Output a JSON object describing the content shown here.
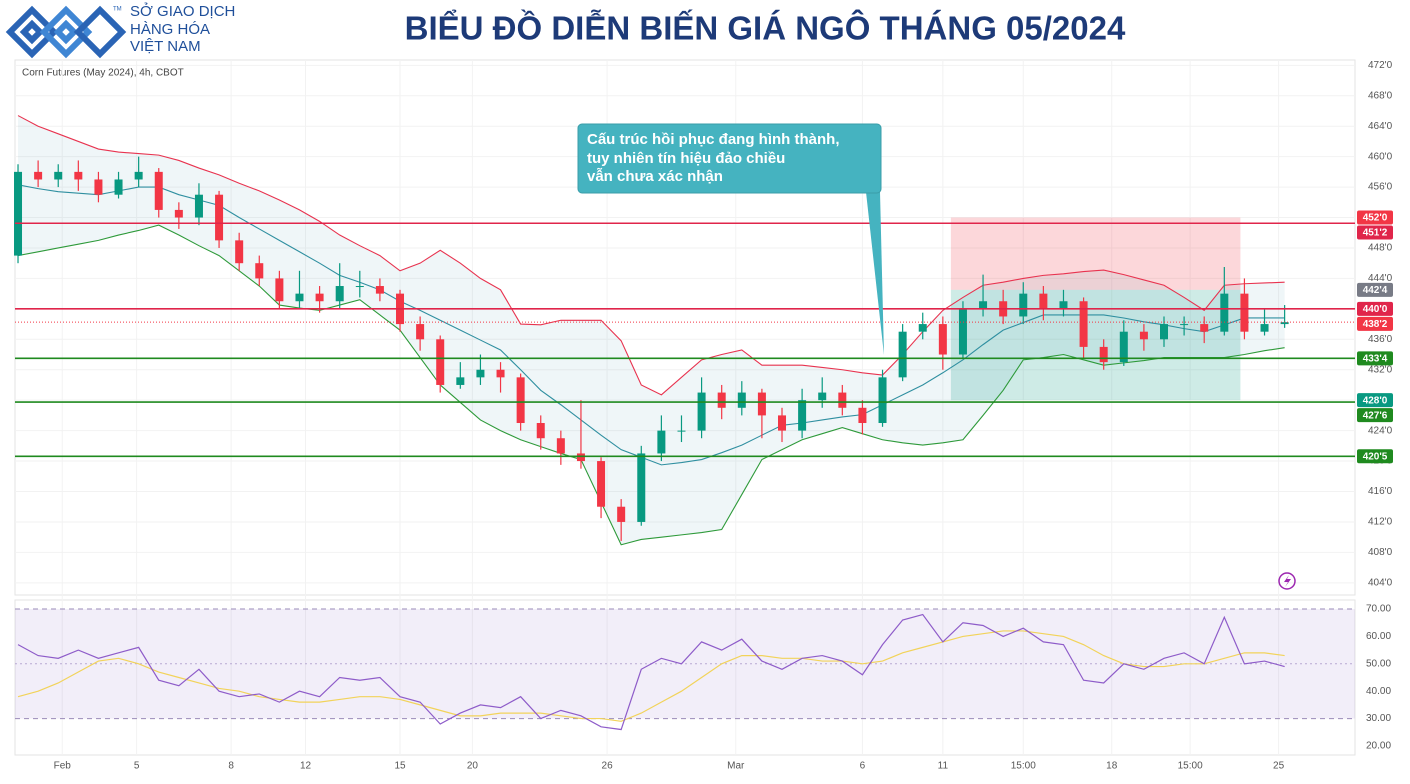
{
  "header": {
    "logo_mark": "TM",
    "logo_lines": [
      "SỞ GIAO DỊCH",
      "HÀNG HÓA",
      "VIỆT NAM"
    ],
    "title": "BIỂU ĐỒ DIỄN BIẾN GIÁ NGÔ THÁNG 05/2024"
  },
  "chart_data": [
    {
      "type": "candlestick",
      "subtitle": "Corn Futures (May 2024), 4h, CBOT",
      "up_color": "#089981",
      "down_color": "#f23645",
      "open": [
        447,
        458,
        457,
        458,
        457,
        455,
        457,
        458,
        453,
        452,
        455,
        449,
        446,
        444,
        441,
        442,
        441,
        443,
        443,
        442,
        438,
        436,
        430,
        431,
        432,
        431,
        425,
        423,
        421,
        420,
        414,
        412,
        421,
        424,
        424,
        429,
        427,
        429,
        426,
        424,
        428,
        429,
        427,
        425,
        431,
        437,
        438,
        434,
        440,
        441,
        439,
        442,
        440,
        441,
        435,
        433,
        437,
        436,
        438,
        438,
        437,
        442,
        437,
        438
      ],
      "high": [
        459,
        459.5,
        459,
        459.5,
        458,
        458,
        460,
        458.5,
        454,
        456.5,
        455.5,
        450,
        447,
        445,
        445,
        443,
        446,
        445,
        444,
        442.5,
        439,
        436.5,
        433,
        434,
        433,
        431.5,
        426,
        424,
        428,
        420.5,
        415,
        422,
        426,
        426,
        431,
        430,
        430.5,
        429.5,
        427,
        429.5,
        431,
        430,
        428,
        432,
        438,
        439.5,
        439,
        441,
        444.5,
        442.5,
        443.5,
        443,
        442.5,
        441.5,
        436,
        438.5,
        438,
        439,
        439,
        439,
        445.5,
        444,
        440,
        440.5
      ],
      "low": [
        446,
        456,
        456,
        455.5,
        454,
        454.5,
        456,
        452,
        450.5,
        451,
        448,
        445,
        443,
        440,
        440,
        439.5,
        440,
        441.5,
        441,
        437,
        434.5,
        429,
        429.5,
        430,
        429,
        424,
        421.5,
        419.5,
        419,
        412.5,
        409.5,
        411.5,
        420,
        422.5,
        423,
        425.5,
        426,
        423,
        422.5,
        423,
        427,
        426,
        423.5,
        424.5,
        430.5,
        436,
        432,
        433.5,
        439,
        438,
        438,
        438.5,
        439,
        433.5,
        432,
        432.5,
        434.5,
        435,
        436.5,
        435.5,
        436.5,
        436,
        436.5,
        437.5
      ],
      "close": [
        458,
        457,
        458,
        457,
        455,
        457,
        458,
        453,
        452,
        455,
        449,
        446,
        444,
        441,
        442,
        441,
        443,
        443,
        442,
        438,
        436,
        430,
        431,
        432,
        431,
        425,
        423,
        421,
        420,
        414,
        412,
        421,
        424,
        424,
        429,
        427,
        429,
        426,
        424,
        428,
        429,
        427,
        425,
        431,
        437,
        438,
        434,
        440,
        441,
        439,
        442,
        440,
        441,
        435,
        433,
        437,
        436,
        438,
        438,
        437,
        442,
        437,
        438,
        438.25
      ],
      "bollinger": {
        "upper_color": "#e8334f",
        "middle_color": "#2f8fa0",
        "lower_color": "#2e9a3a",
        "upper": [
          465.4,
          464,
          463,
          462,
          461,
          460.6,
          460.4,
          460.2,
          459.5,
          458.5,
          457.6,
          456.5,
          455.5,
          454.3,
          453,
          451.5,
          449.7,
          448.3,
          447,
          445,
          446,
          447.7,
          446,
          444,
          442.5,
          438,
          437.9,
          438.5,
          438.5,
          438.5,
          435.8,
          430,
          428.7,
          431,
          433.3,
          434,
          434.6,
          432.6,
          432.6,
          432.6,
          432.3,
          432,
          431.6,
          431.3,
          434,
          437,
          439.8,
          441.5,
          443.1,
          443.5,
          444,
          444.4,
          444.6,
          444.9,
          445.1,
          444.5,
          443.8,
          443.1,
          441.5,
          439.8,
          443.1,
          443.3,
          443.4,
          443.5
        ],
        "middle": [
          456.3,
          455.8,
          455.4,
          455.2,
          455,
          455.5,
          456,
          456,
          455,
          454.3,
          453.6,
          452,
          450.5,
          449,
          447.5,
          446,
          444.4,
          443.5,
          442.5,
          441,
          439.8,
          438.5,
          437.2,
          435.9,
          434.6,
          432,
          429.3,
          427.4,
          425.4,
          423.4,
          421.5,
          420.5,
          419.5,
          419.8,
          420.2,
          421.1,
          422.1,
          423.4,
          424.7,
          425,
          425.4,
          425.8,
          426.1,
          427.4,
          428.7,
          430,
          431.6,
          433.3,
          435.3,
          437.2,
          438.2,
          439.2,
          439.2,
          439.2,
          439.2,
          438.8,
          438.3,
          437.9,
          437.4,
          437,
          437.9,
          438.8,
          438.8,
          438.8
        ],
        "lower": [
          447,
          447.5,
          448,
          448.5,
          449,
          449.7,
          450.3,
          451,
          449.7,
          448.3,
          447,
          445,
          443,
          440.5,
          440.1,
          439.8,
          440.5,
          441.2,
          439.2,
          437.2,
          433.6,
          430,
          427.7,
          425.4,
          424,
          422.8,
          421.9,
          421,
          420.2,
          414.6,
          409,
          409.7,
          410,
          410.3,
          410.6,
          411,
          415.6,
          420.2,
          421.5,
          422.8,
          423.6,
          424.4,
          423.6,
          422.8,
          422.4,
          422.1,
          422.4,
          422.8,
          426,
          429.3,
          433.3,
          433.6,
          434,
          433.3,
          432.6,
          432.9,
          433.2,
          433.6,
          433.6,
          433.6,
          433.6,
          434,
          434.5,
          434.9
        ]
      },
      "xlim": [
        -0.15,
        66.5
      ],
      "ylim": [
        402.4,
        472.7
      ],
      "xticks": [
        {
          "value": 2.2,
          "label": "Feb"
        },
        {
          "value": 5.9,
          "label": "5"
        },
        {
          "value": 10.6,
          "label": "8"
        },
        {
          "value": 14.3,
          "label": "12"
        },
        {
          "value": 19,
          "label": "15"
        },
        {
          "value": 22.6,
          "label": "20"
        },
        {
          "value": 29.3,
          "label": "26"
        },
        {
          "value": 35.7,
          "label": "Mar"
        },
        {
          "value": 42,
          "label": "6"
        },
        {
          "value": 46,
          "label": "11"
        },
        {
          "value": 50,
          "label": "15:00"
        },
        {
          "value": 54.4,
          "label": "18"
        },
        {
          "value": 58.3,
          "label": "15:00"
        },
        {
          "value": 62.7,
          "label": "25"
        }
      ],
      "yticks": [
        {
          "value": 404,
          "label": "404'0"
        },
        {
          "value": 408,
          "label": "408'0"
        },
        {
          "value": 412,
          "label": "412'0"
        },
        {
          "value": 416,
          "label": "416'0"
        },
        {
          "value": 420,
          "label": "420'0"
        },
        {
          "value": 424,
          "label": "424'0"
        },
        {
          "value": 428,
          "label": "428'0"
        },
        {
          "value": 432,
          "label": "432'0"
        },
        {
          "value": 436,
          "label": "436'0"
        },
        {
          "value": 440,
          "label": "440'0"
        },
        {
          "value": 444,
          "label": "444'0"
        },
        {
          "value": 448,
          "label": "448'0"
        },
        {
          "value": 452,
          "label": "452'0"
        },
        {
          "value": 456,
          "label": "456'0"
        },
        {
          "value": 460,
          "label": "460'0"
        },
        {
          "value": 464,
          "label": "464'0"
        },
        {
          "value": 468,
          "label": "468'0"
        },
        {
          "value": 472,
          "label": "472'0"
        }
      ],
      "levels": [
        {
          "value": 451.25,
          "label": "451'2",
          "color": "#e0254a"
        },
        {
          "value": 440,
          "label": "440'0",
          "color": "#e0254a"
        },
        {
          "value": 433.5,
          "label": "433'4",
          "color": "#1f8a1f"
        },
        {
          "value": 427.75,
          "label": "427'6",
          "color": "#1f8a1f"
        },
        {
          "value": 420.625,
          "label": "420'5",
          "color": "#1f8a1f"
        }
      ],
      "position": {
        "x": [
          46.4,
          60.8
        ],
        "target": 452,
        "target_label": "452'0",
        "entry": 442.5,
        "entry_label": "442'4",
        "stop": 428,
        "stop_label": "428'0"
      },
      "last_price": {
        "value": 438.25,
        "label": "438'2",
        "color": "#f23645"
      },
      "annotation": [
        "Cấu trúc hồi phục đang hình thành,",
        "tuy nhiên tín hiệu đảo chiều",
        "vẫn chưa xác nhận"
      ]
    },
    {
      "type": "line",
      "color": "#8e5cc9",
      "ma_color": "#f2d35a",
      "values": [
        57,
        53,
        52,
        55,
        52,
        54,
        56,
        44,
        42,
        48,
        40,
        38,
        39,
        36,
        40,
        38,
        45,
        44,
        45,
        38,
        36,
        28,
        32,
        35,
        34,
        38,
        30,
        33,
        31,
        27,
        26,
        48,
        52,
        50,
        58,
        55,
        59,
        51,
        48,
        52,
        53,
        51,
        46,
        57,
        66,
        68,
        58,
        65,
        64,
        60,
        63,
        58,
        57,
        44,
        43,
        50,
        48,
        52,
        54,
        50,
        67,
        50,
        51,
        49
      ],
      "ma": [
        38,
        40,
        43,
        47,
        51,
        52,
        50,
        47,
        45,
        43,
        41,
        40,
        38,
        37,
        36,
        36,
        37,
        38,
        38,
        37,
        35,
        33,
        31,
        31,
        32,
        32,
        32,
        31,
        30,
        30,
        29,
        32,
        36,
        40,
        45,
        50,
        53,
        53,
        52,
        52,
        51,
        51,
        50,
        51,
        54,
        56,
        58,
        60,
        61,
        62,
        62,
        61,
        60,
        57,
        53,
        50,
        49,
        49,
        50,
        50,
        52,
        54,
        54,
        53
      ],
      "overbought": 70,
      "oversold": 30,
      "midline": 50,
      "xlim": [
        -0.15,
        66.5
      ],
      "ylim": [
        16.7,
        73.3
      ],
      "yticks": [
        {
          "value": 20,
          "label": "20.00"
        },
        {
          "value": 30,
          "label": "30.00"
        },
        {
          "value": 40,
          "label": "40.00"
        },
        {
          "value": 50,
          "label": "50.00"
        },
        {
          "value": 60,
          "label": "60.00"
        },
        {
          "value": 70,
          "label": "70.00"
        }
      ]
    }
  ]
}
